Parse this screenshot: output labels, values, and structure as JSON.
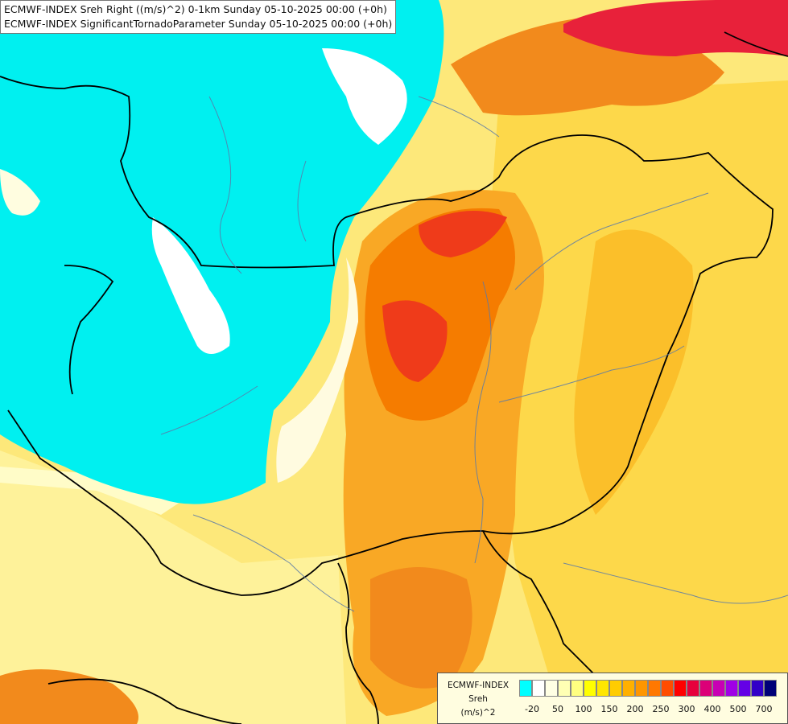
{
  "title": {
    "line1": "ECMWF-INDEX Sreh Right ((m/s)^2) 0-1km Sunday 05-10-2025 00:00 (+0h)",
    "line2": "ECMWF-INDEX SignificantTornadoParameter Sunday 05-10-2025 00:00 (+0h)"
  },
  "legend": {
    "label_model": "ECMWF-INDEX",
    "label_var": "Sreh",
    "label_unit": "(m/s)^2",
    "swatch_colors": [
      "#00ffff",
      "#ffffff",
      "#ffffe4",
      "#ffffb4",
      "#ffff80",
      "#ffff00",
      "#ffe600",
      "#ffcc00",
      "#ffb000",
      "#ff9600",
      "#ff7800",
      "#ff4c00",
      "#ff0000",
      "#e6003c",
      "#dc0078",
      "#c800b4",
      "#a000e6",
      "#6400e6",
      "#3200c8",
      "#000078"
    ],
    "ticks": [
      "-20",
      "50",
      "100",
      "150",
      "200",
      "250",
      "300",
      "400",
      "500",
      "700"
    ]
  }
}
